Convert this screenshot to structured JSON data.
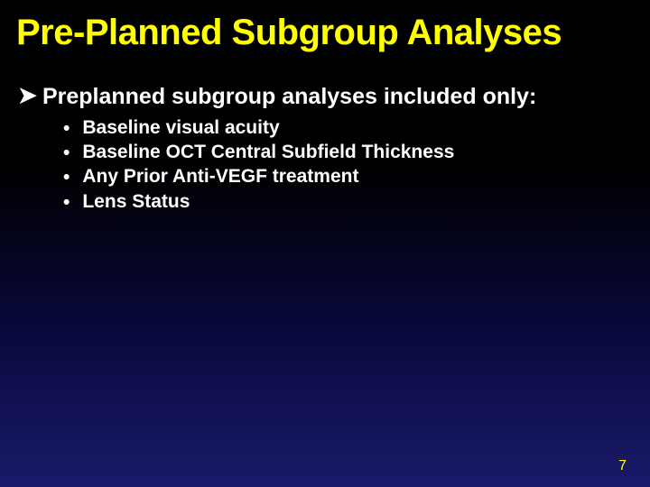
{
  "slide": {
    "title": "Pre-Planned Subgroup Analyses",
    "main_bullet": "Preplanned subgroup analyses included only:",
    "sub_bullets": [
      "Baseline visual acuity",
      "Baseline OCT Central Subfield Thickness",
      "Any Prior Anti-VEGF treatment",
      "Lens Status"
    ],
    "page_number": "7",
    "colors": {
      "title_color": "#ffff00",
      "text_color": "#ffffff",
      "page_num_color": "#ffff00",
      "bg_top": "#000000",
      "bg_bottom": "#1a1a6a"
    },
    "typography": {
      "title_fontsize": 40,
      "main_bullet_fontsize": 25,
      "sub_bullet_fontsize": 21,
      "page_num_fontsize": 16,
      "font_family": "Arial"
    }
  }
}
